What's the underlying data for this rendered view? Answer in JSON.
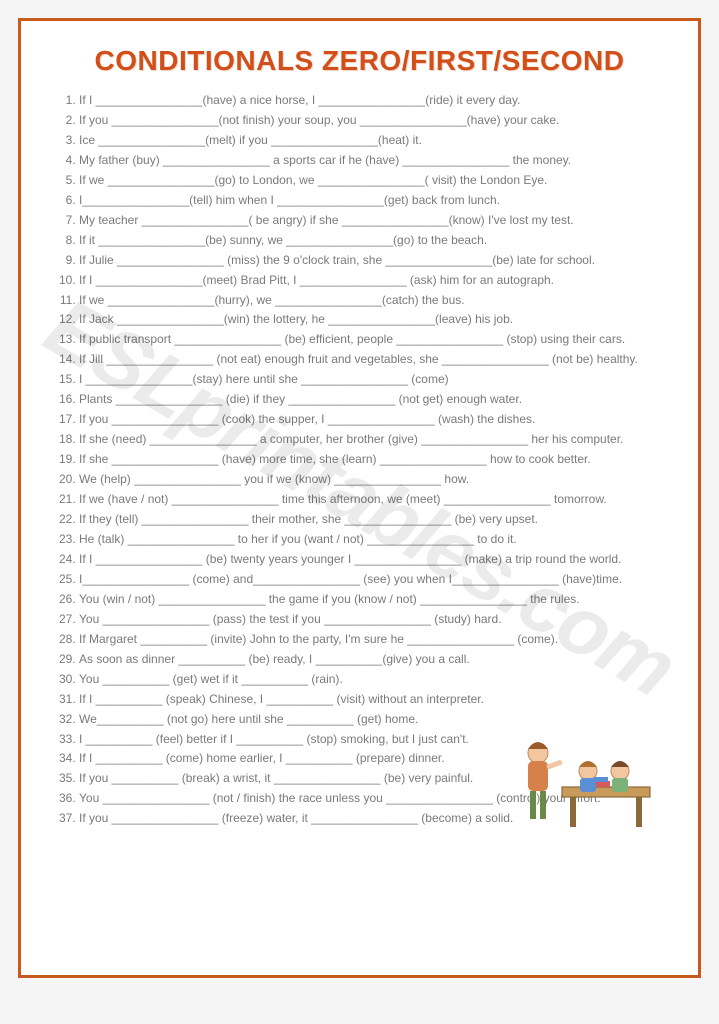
{
  "title": "CONDITIONALS ZERO/FIRST/SECOND",
  "watermark": "ESLprintables.com",
  "colors": {
    "border": "#c85a1e",
    "title": "#d34f1a",
    "text": "#7a7a7a",
    "background": "#ffffff"
  },
  "items": [
    "If I ________________(have) a nice horse, I ________________(ride) it every day.",
    "If you ________________(not finish) your soup, you ________________(have) your cake.",
    "Ice ________________(melt) if you ________________(heat) it.",
    "My father (buy) ________________ a sports car if he (have) ________________ the money.",
    "If we ________________(go) to London, we ________________( visit) the London Eye.",
    "I________________(tell) him when I ________________(get) back from lunch.",
    "My teacher ________________( be angry) if she ________________(know) I've lost my test.",
    "If it ________________(be)  sunny, we ________________(go) to the beach.",
    "If Julie ________________ (miss) the 9 o'clock train, she ________________(be) late for school.",
    "If I ________________(meet) Brad Pitt, I ________________ (ask) him for an autograph.",
    "If we ________________(hurry), we ________________(catch) the bus.",
    "If Jack ________________(win) the lottery, he ________________(leave) his job.",
    "If public transport ________________ (be) efficient, people ________________ (stop) using their cars.",
    "If Jill ________________ (not eat) enough fruit and vegetables, she ________________ (not be) healthy.",
    "I ________________(stay) here until she ________________ (come)",
    "Plants ________________ (die) if they ________________ (not get) enough water.",
    "If you ________________ (cook) the supper, I ________________ (wash) the dishes.",
    "If she (need) ________________ a computer, her brother (give) ________________ her his computer.",
    "If she ________________ (have)  more time, she (learn) ________________ how to cook better.",
    "We (help) ________________ you if we (know) ________________ how.",
    "If we (have / not) ________________ time this afternoon, we (meet) ________________ tomorrow.",
    "If they (tell) ________________ their mother, she ________________ (be) very upset.",
    "He (talk) ________________ to her if you (want / not) ________________ to do it.",
    "If I ________________ (be) twenty years younger I ________________ (make)  a trip round the world.",
    "I________________ (come)  and________________ (see) you when I________________ (have)time.",
    "You (win / not) ________________ the game if you (know / not) ________________ the rules.",
    "You ________________ (pass) the test if you ________________ (study) hard.",
    "If Margaret __________ (invite) John to the party, I'm sure he ________________ (come).",
    "As soon as dinner __________ (be) ready, I __________(give) you a call.",
    "You __________ (get) wet if it __________ (rain).",
    "If I __________ (speak) Chinese, I __________ (visit) without an interpreter.",
    "We__________ (not go) here until she __________ (get) home.",
    "I __________ (feel)  better if I __________ (stop) smoking, but I just can't.",
    "If I __________ (come) home earlier, I __________ (prepare) dinner.",
    "If you __________ (break) a wrist, it ________________ (be) very painful.",
    "You ________________ (not / finish) the race unless you ________________ (control) your effort.",
    "If you ________________ (freeze) water, it ________________ (become) a solid."
  ]
}
